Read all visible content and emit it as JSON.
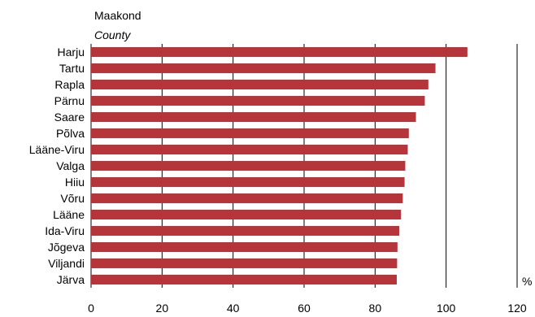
{
  "chart_data": {
    "type": "bar",
    "orientation": "horizontal",
    "title": "Maakond",
    "subtitle": "County",
    "categories": [
      "Harju",
      "Tartu",
      "Rapla",
      "Pärnu",
      "Saare",
      "Põlva",
      "Lääne-Viru",
      "Valga",
      "Hiiu",
      "Võru",
      "Lääne",
      "Ida-Viru",
      "Jõgeva",
      "Viljandi",
      "Järva"
    ],
    "values": [
      106,
      97,
      95,
      94,
      91.5,
      89.5,
      89.2,
      88.5,
      88.3,
      87.8,
      87.3,
      86.8,
      86.3,
      86.2,
      86.1
    ],
    "xlim": [
      0,
      120
    ],
    "xticks": [
      0,
      20,
      40,
      60,
      80,
      100,
      120
    ],
    "xlabel": "%",
    "grid": true,
    "bar_color": "#b5353b"
  }
}
